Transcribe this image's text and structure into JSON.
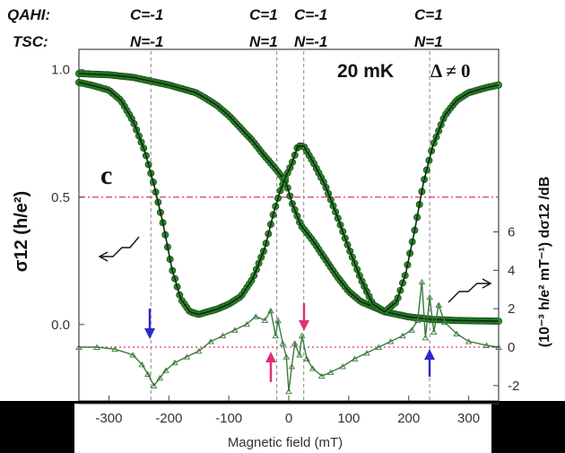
{
  "header": {
    "row1_label": "QAHI:",
    "row2_label": "TSC:",
    "columns": [
      {
        "top": "C=-1",
        "bottom": "N=-1"
      },
      {
        "top": "C=1",
        "bottom": "N=1"
      },
      {
        "top": "C=-1",
        "bottom": "N=-1"
      },
      {
        "top": "C=1",
        "bottom": "N=1"
      }
    ]
  },
  "chart_data": {
    "type": "line",
    "panel_label": "c",
    "annotation_temp": "20 mK",
    "annotation_gap": "Δ ≠ 0",
    "xlabel": "Magnetic field (mT)",
    "ylabel_left": "σ12 (h/e²)",
    "ylabel_right": "(10⁻³ h/e² mT⁻¹) dσ12 /dB",
    "xlim": [
      -350,
      350
    ],
    "ylim_left": [
      -0.3,
      1.08
    ],
    "ylim_right": [
      -2.8,
      15.5
    ],
    "x_ticks": [
      -300,
      -200,
      -100,
      0,
      100,
      200,
      300
    ],
    "y_ticks_left": [
      "1.0",
      "0.5",
      "0.0"
    ],
    "y_ticks_right": [
      "-2",
      "0",
      "2",
      "4",
      "6"
    ],
    "reference_lines": {
      "half_plateau": 0.5,
      "zero_derivative": 0,
      "transitions_mT": [
        -230,
        -20,
        25,
        235
      ]
    },
    "series": [
      {
        "axis": "left",
        "x": [
          -350,
          -300,
          -260,
          -240,
          -220,
          -200,
          -185,
          -170,
          -155,
          -140,
          -120,
          -100,
          -80,
          -60,
          -40,
          -25,
          -15,
          -5,
          5,
          20,
          40,
          60,
          80,
          100,
          120,
          140,
          160,
          180,
          200,
          220,
          240,
          260,
          280,
          300,
          330,
          350
        ],
        "y": [
          0.985,
          0.98,
          0.97,
          0.96,
          0.95,
          0.94,
          0.93,
          0.92,
          0.91,
          0.89,
          0.86,
          0.82,
          0.77,
          0.72,
          0.66,
          0.62,
          0.59,
          0.56,
          0.48,
          0.39,
          0.33,
          0.26,
          0.19,
          0.13,
          0.09,
          0.07,
          0.05,
          0.04,
          0.03,
          0.025,
          0.02,
          0.018,
          0.016,
          0.015,
          0.014,
          0.013
        ]
      },
      {
        "axis": "left",
        "x": [
          -350,
          -330,
          -300,
          -280,
          -260,
          -240,
          -225,
          -210,
          -195,
          -180,
          -165,
          -150,
          -135,
          -120,
          -100,
          -80,
          -60,
          -40,
          -25,
          -15,
          -5,
          5,
          15,
          25,
          40,
          60,
          80,
          100,
          120,
          140,
          160,
          180,
          195,
          210,
          225,
          240,
          260,
          280,
          300,
          330,
          350
        ],
        "y": [
          0.95,
          0.94,
          0.92,
          0.88,
          0.8,
          0.68,
          0.55,
          0.4,
          0.22,
          0.1,
          0.05,
          0.04,
          0.05,
          0.06,
          0.08,
          0.11,
          0.18,
          0.3,
          0.44,
          0.52,
          0.58,
          0.63,
          0.7,
          0.7,
          0.64,
          0.55,
          0.43,
          0.3,
          0.18,
          0.08,
          0.05,
          0.09,
          0.2,
          0.37,
          0.56,
          0.7,
          0.82,
          0.88,
          0.91,
          0.93,
          0.94
        ]
      },
      {
        "axis": "right",
        "x": [
          -350,
          -320,
          -290,
          -260,
          -245,
          -235,
          -225,
          -215,
          -205,
          -190,
          -170,
          -150,
          -130,
          -110,
          -90,
          -70,
          -55,
          -40,
          -30,
          -22,
          -18,
          -10,
          -4,
          0,
          5,
          10,
          18,
          22,
          30,
          40,
          55,
          70,
          90,
          110,
          130,
          150,
          170,
          190,
          205,
          215,
          222,
          228,
          235,
          242,
          250,
          260,
          280,
          300,
          330,
          350
        ],
        "y": [
          0.0,
          0.0,
          -0.1,
          -0.4,
          -0.9,
          -1.4,
          -2.0,
          -1.6,
          -1.2,
          -0.8,
          -0.5,
          -0.2,
          0.3,
          0.6,
          0.9,
          1.2,
          1.6,
          1.4,
          1.9,
          0.6,
          1.4,
          0.2,
          -0.5,
          -2.3,
          -1.0,
          0.2,
          -0.4,
          0.6,
          -0.6,
          -1.1,
          -1.5,
          -1.3,
          -1.0,
          -0.6,
          -0.3,
          0.0,
          0.3,
          0.6,
          0.9,
          1.4,
          3.4,
          0.5,
          2.6,
          0.8,
          2.2,
          1.3,
          0.7,
          0.3,
          0.1,
          0.0
        ]
      }
    ]
  }
}
